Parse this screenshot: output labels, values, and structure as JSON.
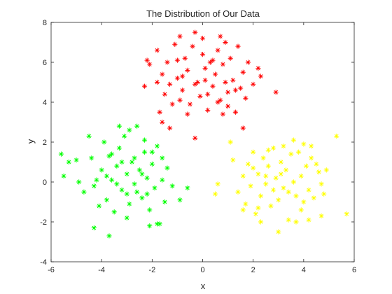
{
  "chart_data": {
    "type": "scatter",
    "title": "The Distribution of Our Data",
    "xlabel": "x",
    "ylabel": "y",
    "xlim": [
      -6,
      6
    ],
    "ylim": [
      -4,
      8
    ],
    "xticks": [
      "-6",
      "-4",
      "-2",
      "0",
      "2",
      "4",
      "6"
    ],
    "yticks": [
      "-4",
      "-2",
      "0",
      "2",
      "4",
      "6",
      "8"
    ],
    "grid": false,
    "marker": "asterisk",
    "series": [
      {
        "color": "#ff0000",
        "points": [
          [
            -2.2,
            6.1
          ],
          [
            -2.1,
            5.9
          ],
          [
            -1.8,
            6.6
          ],
          [
            -1.6,
            5.4
          ],
          [
            -1.4,
            6.0
          ],
          [
            -1.3,
            4.9
          ],
          [
            -1.1,
            6.9
          ],
          [
            -1.0,
            5.2
          ],
          [
            -0.9,
            7.3
          ],
          [
            -0.8,
            4.6
          ],
          [
            -0.7,
            6.2
          ],
          [
            -0.6,
            5.6
          ],
          [
            -0.5,
            3.9
          ],
          [
            -0.4,
            6.8
          ],
          [
            -0.3,
            7.5
          ],
          [
            -0.2,
            5.0
          ],
          [
            -0.1,
            4.3
          ],
          [
            0.0,
            6.4
          ],
          [
            0.1,
            5.7
          ],
          [
            0.2,
            3.6
          ],
          [
            0.3,
            6.0
          ],
          [
            0.4,
            4.8
          ],
          [
            0.5,
            5.4
          ],
          [
            0.6,
            6.6
          ],
          [
            0.7,
            4.1
          ],
          [
            0.8,
            5.9
          ],
          [
            0.9,
            7.0
          ],
          [
            1.0,
            4.5
          ],
          [
            1.1,
            6.2
          ],
          [
            1.2,
            5.1
          ],
          [
            1.3,
            3.5
          ],
          [
            1.4,
            6.8
          ],
          [
            1.5,
            4.7
          ],
          [
            1.6,
            5.5
          ],
          [
            1.8,
            6.0
          ],
          [
            2.0,
            4.9
          ],
          [
            2.3,
            5.3
          ],
          [
            2.9,
            4.5
          ],
          [
            -1.8,
            5.0
          ],
          [
            -1.5,
            4.4
          ],
          [
            -1.2,
            3.9
          ],
          [
            -0.9,
            4.1
          ],
          [
            -0.6,
            3.4
          ],
          [
            -0.3,
            4.9
          ],
          [
            0.2,
            4.4
          ],
          [
            0.6,
            4.0
          ],
          [
            1.0,
            3.8
          ],
          [
            -2.3,
            4.8
          ],
          [
            -1.6,
            3.0
          ],
          [
            -1.7,
            3.5
          ],
          [
            -1.3,
            2.7
          ],
          [
            -0.3,
            2.2
          ],
          [
            1.6,
            2.7
          ],
          [
            0.8,
            3.4
          ],
          [
            -0.8,
            5.3
          ],
          [
            0.1,
            5.1
          ],
          [
            0.4,
            6.1
          ],
          [
            0.9,
            5.0
          ],
          [
            1.3,
            4.6
          ],
          [
            1.7,
            4.2
          ],
          [
            2.2,
            5.7
          ],
          [
            -1.0,
            6.1
          ],
          [
            0.0,
            7.2
          ],
          [
            0.7,
            7.3
          ]
        ]
      },
      {
        "color": "#00ff00",
        "points": [
          [
            -5.6,
            1.4
          ],
          [
            -5.5,
            0.3
          ],
          [
            -5.3,
            1.0
          ],
          [
            -5.0,
            1.1
          ],
          [
            -4.9,
            0.0
          ],
          [
            -4.7,
            -0.5
          ],
          [
            -4.5,
            2.3
          ],
          [
            -4.4,
            1.2
          ],
          [
            -4.3,
            -0.2
          ],
          [
            -4.1,
            -1.2
          ],
          [
            -4.0,
            0.6
          ],
          [
            -3.9,
            2.0
          ],
          [
            -3.8,
            -0.9
          ],
          [
            -3.7,
            1.3
          ],
          [
            -3.6,
            0.1
          ],
          [
            -3.5,
            -1.5
          ],
          [
            -3.4,
            0.8
          ],
          [
            -3.3,
            1.7
          ],
          [
            -3.2,
            -0.4
          ],
          [
            -3.1,
            2.3
          ],
          [
            -3.0,
            0.4
          ],
          [
            -2.9,
            -1.1
          ],
          [
            -2.8,
            1.0
          ],
          [
            -2.7,
            -0.1
          ],
          [
            -2.6,
            2.8
          ],
          [
            -2.5,
            0.6
          ],
          [
            -2.4,
            -0.8
          ],
          [
            -2.3,
            1.5
          ],
          [
            -2.2,
            0.2
          ],
          [
            -2.1,
            -1.4
          ],
          [
            -2.0,
            0.9
          ],
          [
            -1.9,
            -0.3
          ],
          [
            -1.8,
            1.8
          ],
          [
            -1.7,
            -2.1
          ],
          [
            -1.6,
            0.1
          ],
          [
            -1.5,
            -1.0
          ],
          [
            -1.4,
            0.7
          ],
          [
            -1.2,
            -0.2
          ],
          [
            -0.9,
            -0.9
          ],
          [
            -0.6,
            -0.3
          ],
          [
            -4.3,
            -2.3
          ],
          [
            -3.7,
            -2.7
          ],
          [
            -3.0,
            -1.8
          ],
          [
            -2.1,
            -2.2
          ],
          [
            -1.8,
            -2.1
          ],
          [
            -3.6,
            1.4
          ],
          [
            -3.2,
            1.0
          ],
          [
            -2.7,
            1.2
          ],
          [
            -2.4,
            0.4
          ],
          [
            -3.4,
            -0.1
          ],
          [
            -3.0,
            -0.6
          ],
          [
            -2.6,
            -0.5
          ],
          [
            -2.2,
            -0.6
          ],
          [
            -3.8,
            0.3
          ],
          [
            -4.2,
            0.1
          ],
          [
            -2.0,
            1.5
          ],
          [
            -1.6,
            1.2
          ],
          [
            -2.9,
            2.6
          ],
          [
            -3.3,
            2.8
          ],
          [
            -2.3,
            2.1
          ]
        ]
      },
      {
        "color": "#ffff00",
        "points": [
          [
            1.1,
            2.0
          ],
          [
            1.2,
            1.1
          ],
          [
            1.4,
            -0.5
          ],
          [
            1.6,
            0.3
          ],
          [
            1.7,
            -1.1
          ],
          [
            1.8,
            0.9
          ],
          [
            1.9,
            -0.2
          ],
          [
            2.0,
            1.5
          ],
          [
            2.1,
            -1.6
          ],
          [
            2.2,
            0.4
          ],
          [
            2.3,
            -0.7
          ],
          [
            2.4,
            1.2
          ],
          [
            2.5,
            -0.1
          ],
          [
            2.6,
            0.8
          ],
          [
            2.7,
            -1.2
          ],
          [
            2.8,
            1.7
          ],
          [
            2.9,
            0.2
          ],
          [
            3.0,
            -0.9
          ],
          [
            3.1,
            1.0
          ],
          [
            3.2,
            -0.3
          ],
          [
            3.3,
            0.6
          ],
          [
            3.4,
            -1.9
          ],
          [
            3.5,
            1.4
          ],
          [
            3.6,
            0.0
          ],
          [
            3.7,
            -0.7
          ],
          [
            3.8,
            1.5
          ],
          [
            3.9,
            0.3
          ],
          [
            4.0,
            -1.0
          ],
          [
            4.1,
            0.8
          ],
          [
            4.2,
            -0.4
          ],
          [
            4.3,
            1.2
          ],
          [
            4.4,
            -0.8
          ],
          [
            4.6,
            0.5
          ],
          [
            4.7,
            -0.1
          ],
          [
            4.9,
            0.6
          ],
          [
            5.3,
            2.3
          ],
          [
            5.7,
            -1.6
          ],
          [
            0.6,
            -0.1
          ],
          [
            0.5,
            -0.6
          ],
          [
            2.3,
            -2.0
          ],
          [
            3.0,
            -2.5
          ],
          [
            3.7,
            -2.0
          ],
          [
            4.2,
            -1.9
          ],
          [
            4.7,
            -1.7
          ],
          [
            3.6,
            2.1
          ],
          [
            4.0,
            1.9
          ],
          [
            4.3,
            1.8
          ],
          [
            2.0,
            0.7
          ],
          [
            2.5,
            0.3
          ],
          [
            3.1,
            0.4
          ],
          [
            3.4,
            -0.5
          ],
          [
            2.8,
            -0.4
          ],
          [
            2.2,
            -1.3
          ],
          [
            1.6,
            -1.4
          ],
          [
            3.9,
            -1.4
          ],
          [
            4.5,
            0.9
          ],
          [
            4.8,
            -0.6
          ],
          [
            2.6,
            1.6
          ],
          [
            3.2,
            1.8
          ]
        ]
      }
    ]
  }
}
